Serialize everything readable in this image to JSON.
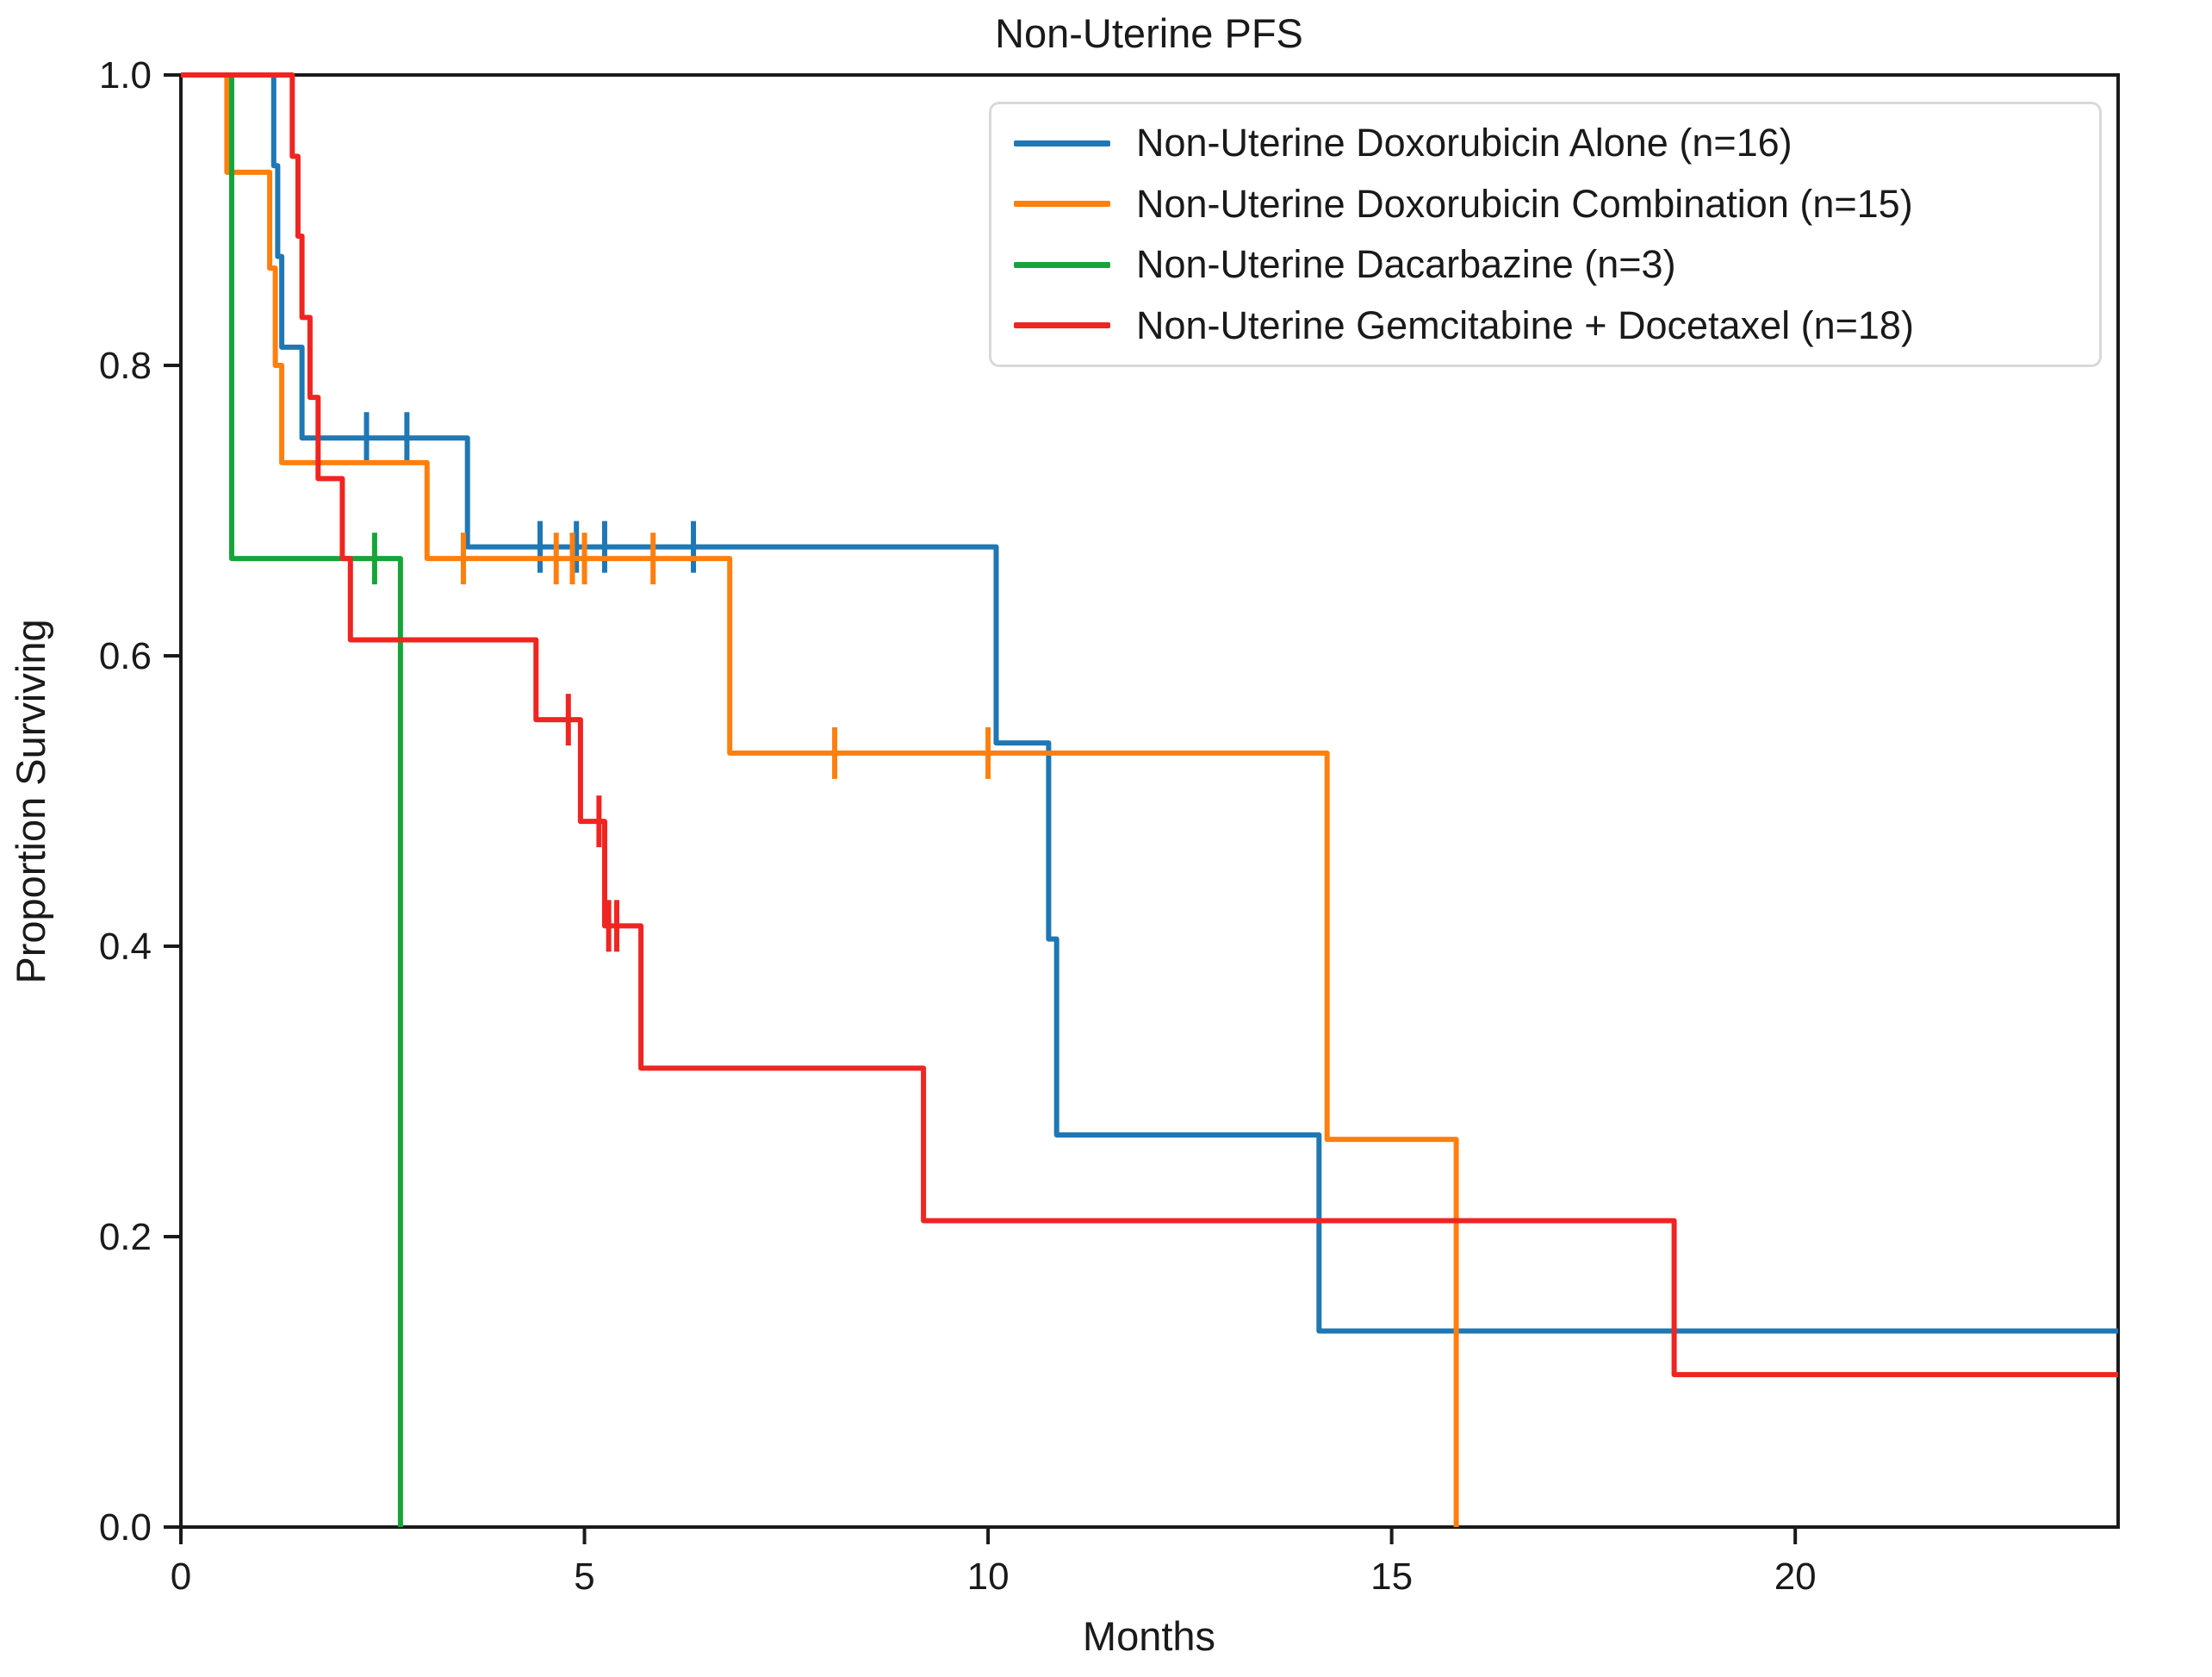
{
  "figure": {
    "title": "Non-Uterine PFS",
    "background": "#ffffff",
    "spine_color": "#1a1a1a"
  },
  "chart_data": {
    "type": "line",
    "subtype": "kaplan-meier-step-curves-with-censor-ticks",
    "title": "Non-Uterine PFS",
    "xlabel": "Months",
    "ylabel": "Proportion Surviving",
    "xlim": [
      0,
      24
    ],
    "ylim": [
      0.0,
      1.0
    ],
    "x_ticks": [
      0,
      5,
      10,
      15,
      20
    ],
    "y_ticks": [
      0.0,
      0.2,
      0.4,
      0.6,
      0.8,
      1.0
    ],
    "grid": false,
    "legend_position": "upper right",
    "series": [
      {
        "name": "Non-Uterine Doxorubicin Alone (n=16)",
        "key": "doxorubicin-alone",
        "color": "#1f77b4",
        "steps": [
          [
            0,
            1.0
          ],
          [
            1.15,
            1.0
          ],
          [
            1.15,
            0.9375
          ],
          [
            1.2,
            0.9375
          ],
          [
            1.2,
            0.875
          ],
          [
            1.25,
            0.875
          ],
          [
            1.25,
            0.8125
          ],
          [
            1.5,
            0.8125
          ],
          [
            1.5,
            0.75
          ],
          [
            3.55,
            0.75
          ],
          [
            3.55,
            0.675
          ],
          [
            10.1,
            0.675
          ],
          [
            10.1,
            0.54
          ],
          [
            10.75,
            0.54
          ],
          [
            10.75,
            0.405
          ],
          [
            10.85,
            0.405
          ],
          [
            10.85,
            0.27
          ],
          [
            14.1,
            0.27
          ],
          [
            14.1,
            0.135
          ],
          [
            24,
            0.135
          ]
        ],
        "censors": [
          [
            2.3,
            0.75
          ],
          [
            2.8,
            0.75
          ],
          [
            4.45,
            0.675
          ],
          [
            4.9,
            0.675
          ],
          [
            5.25,
            0.675
          ],
          [
            6.35,
            0.675
          ]
        ]
      },
      {
        "name": "Non-Uterine Doxorubicin Combination (n=15)",
        "key": "doxorubicin-combination",
        "color": "#ff7f0e",
        "steps": [
          [
            0,
            1.0
          ],
          [
            0.57,
            1.0
          ],
          [
            0.57,
            0.933
          ],
          [
            1.1,
            0.933
          ],
          [
            1.1,
            0.867
          ],
          [
            1.17,
            0.867
          ],
          [
            1.17,
            0.8
          ],
          [
            1.25,
            0.8
          ],
          [
            1.25,
            0.733
          ],
          [
            3.05,
            0.733
          ],
          [
            3.05,
            0.667
          ],
          [
            6.8,
            0.667
          ],
          [
            6.8,
            0.533
          ],
          [
            14.2,
            0.533
          ],
          [
            14.2,
            0.267
          ],
          [
            15.8,
            0.267
          ],
          [
            15.8,
            0.0
          ]
        ],
        "censors": [
          [
            3.5,
            0.667
          ],
          [
            4.65,
            0.667
          ],
          [
            4.85,
            0.667
          ],
          [
            5.0,
            0.667
          ],
          [
            5.85,
            0.667
          ],
          [
            8.1,
            0.533
          ],
          [
            10.0,
            0.533
          ]
        ]
      },
      {
        "name": "Non-Uterine Dacarbazine (n=3)",
        "key": "dacarbazine",
        "color": "#17a53a",
        "steps": [
          [
            0,
            1.0
          ],
          [
            0.63,
            1.0
          ],
          [
            0.63,
            0.667
          ],
          [
            2.72,
            0.667
          ],
          [
            2.72,
            0.0
          ]
        ],
        "censors": [
          [
            2.4,
            0.667
          ]
        ]
      },
      {
        "name": "Non-Uterine Gemcitabine + Docetaxel (n=18)",
        "key": "gemcitabine-docetaxel",
        "color": "#ef2522",
        "steps": [
          [
            0,
            1.0
          ],
          [
            1.38,
            1.0
          ],
          [
            1.38,
            0.944
          ],
          [
            1.45,
            0.944
          ],
          [
            1.45,
            0.889
          ],
          [
            1.5,
            0.889
          ],
          [
            1.5,
            0.833
          ],
          [
            1.6,
            0.833
          ],
          [
            1.6,
            0.778
          ],
          [
            1.7,
            0.778
          ],
          [
            1.7,
            0.722
          ],
          [
            2.0,
            0.722
          ],
          [
            2.0,
            0.667
          ],
          [
            2.1,
            0.667
          ],
          [
            2.1,
            0.611
          ],
          [
            4.4,
            0.611
          ],
          [
            4.4,
            0.556
          ],
          [
            4.95,
            0.556
          ],
          [
            4.95,
            0.486
          ],
          [
            5.25,
            0.486
          ],
          [
            5.25,
            0.414
          ],
          [
            5.7,
            0.414
          ],
          [
            5.7,
            0.316
          ],
          [
            9.2,
            0.316
          ],
          [
            9.2,
            0.211
          ],
          [
            18.5,
            0.211
          ],
          [
            18.5,
            0.105
          ],
          [
            24,
            0.105
          ]
        ],
        "censors": [
          [
            4.8,
            0.556
          ],
          [
            5.18,
            0.486
          ],
          [
            5.3,
            0.414
          ],
          [
            5.4,
            0.414
          ]
        ]
      }
    ]
  }
}
